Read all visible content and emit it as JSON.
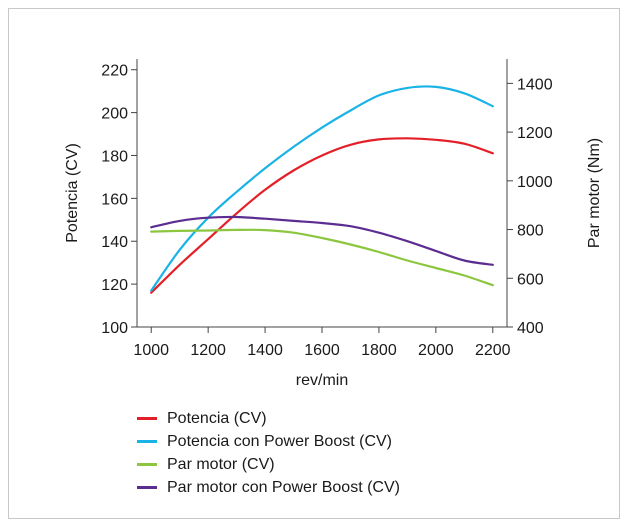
{
  "chart_data": {
    "type": "line",
    "title": "",
    "xlabel": "rev/min",
    "ylabel_left": "Potencia (CV)",
    "ylabel_right": "Par motor (Nm)",
    "x_ticks": [
      1000,
      1200,
      1400,
      1600,
      1800,
      2000,
      2200
    ],
    "y_left_ticks": [
      100,
      120,
      140,
      160,
      180,
      200,
      220
    ],
    "y_right_ticks": [
      400,
      600,
      800,
      1000,
      1200,
      1400
    ],
    "xlim": [
      950,
      2250
    ],
    "ylim_left": [
      100,
      225
    ],
    "ylim_right": [
      400,
      1500
    ],
    "grid": false,
    "legend_position": "bottom",
    "series": [
      {
        "name": "Potencia (CV)",
        "color": "#e32028",
        "axis": "left",
        "x": [
          1000,
          1100,
          1200,
          1300,
          1400,
          1500,
          1600,
          1700,
          1800,
          1900,
          2000,
          2100,
          2200
        ],
        "values": [
          116,
          129,
          141,
          153,
          164,
          173,
          180,
          185,
          187.5,
          188,
          187.3,
          185.5,
          181
        ]
      },
      {
        "name": "Potencia con Power Boost (CV)",
        "color": "#1ab3e6",
        "axis": "left",
        "x": [
          1000,
          1100,
          1200,
          1300,
          1400,
          1500,
          1600,
          1700,
          1800,
          1900,
          2000,
          2100,
          2200
        ],
        "values": [
          117,
          136,
          151,
          163,
          174,
          184,
          193,
          201,
          208,
          211.5,
          212,
          209,
          203
        ]
      },
      {
        "name": "Par motor (CV)",
        "color": "#8cc63f",
        "axis": "left",
        "x": [
          1000,
          1100,
          1200,
          1300,
          1400,
          1500,
          1600,
          1700,
          1800,
          1900,
          2000,
          2100,
          2200
        ],
        "values": [
          144.5,
          144.8,
          145,
          145.3,
          145.2,
          144,
          141.5,
          138.5,
          135,
          131,
          127.5,
          124,
          119.5
        ]
      },
      {
        "name": "Par motor con Power Boost (CV)",
        "color": "#5c2d91",
        "axis": "left",
        "x": [
          1000,
          1100,
          1200,
          1300,
          1400,
          1500,
          1600,
          1700,
          1800,
          1900,
          2000,
          2100,
          2200
        ],
        "values": [
          146.5,
          149.5,
          151,
          151.3,
          150.5,
          149.5,
          148.5,
          147,
          144,
          140,
          135.5,
          131,
          129
        ]
      }
    ]
  }
}
